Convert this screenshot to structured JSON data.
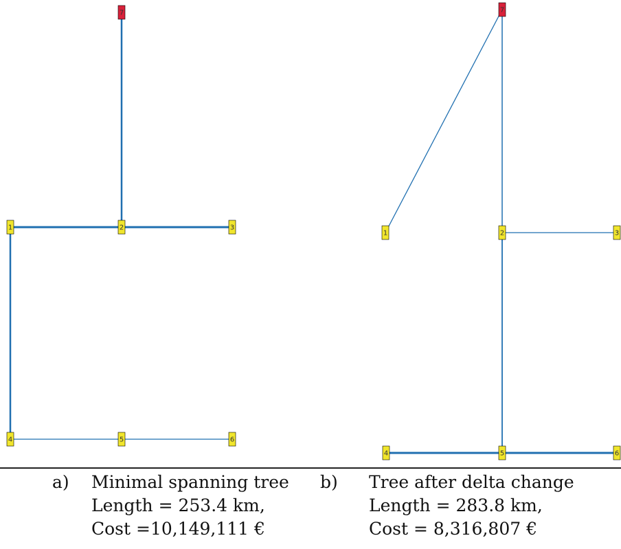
{
  "colors": {
    "edge": "#1f6fb0",
    "node_fill": "#f1e62c",
    "root_fill": "#d8213a",
    "rule": "#222222"
  },
  "panel_a": {
    "nodes": [
      {
        "id": "7",
        "root": true
      },
      {
        "id": "1"
      },
      {
        "id": "2"
      },
      {
        "id": "3"
      },
      {
        "id": "4"
      },
      {
        "id": "5"
      },
      {
        "id": "6"
      }
    ],
    "edges": [
      {
        "from": "7",
        "to": "2"
      },
      {
        "from": "1",
        "to": "2"
      },
      {
        "from": "2",
        "to": "3"
      },
      {
        "from": "1",
        "to": "4"
      },
      {
        "from": "4",
        "to": "5"
      },
      {
        "from": "5",
        "to": "6"
      }
    ],
    "caption": {
      "letter": "a)",
      "title": "Minimal spanning tree",
      "length": "Length = 253.4 km,",
      "cost": "Cost =10,149,111 €"
    }
  },
  "panel_b": {
    "nodes": [
      {
        "id": "7",
        "root": true
      },
      {
        "id": "1"
      },
      {
        "id": "2"
      },
      {
        "id": "3"
      },
      {
        "id": "4"
      },
      {
        "id": "5"
      },
      {
        "id": "6"
      }
    ],
    "edges": [
      {
        "from": "7",
        "to": "1"
      },
      {
        "from": "7",
        "to": "2"
      },
      {
        "from": "2",
        "to": "3"
      },
      {
        "from": "2",
        "to": "5"
      },
      {
        "from": "4",
        "to": "5"
      },
      {
        "from": "5",
        "to": "6"
      }
    ],
    "caption": {
      "letter": "b)",
      "title": "Tree after delta change",
      "length": "Length = 283.8 km,",
      "cost": "Cost = 8,316,807 €"
    }
  }
}
